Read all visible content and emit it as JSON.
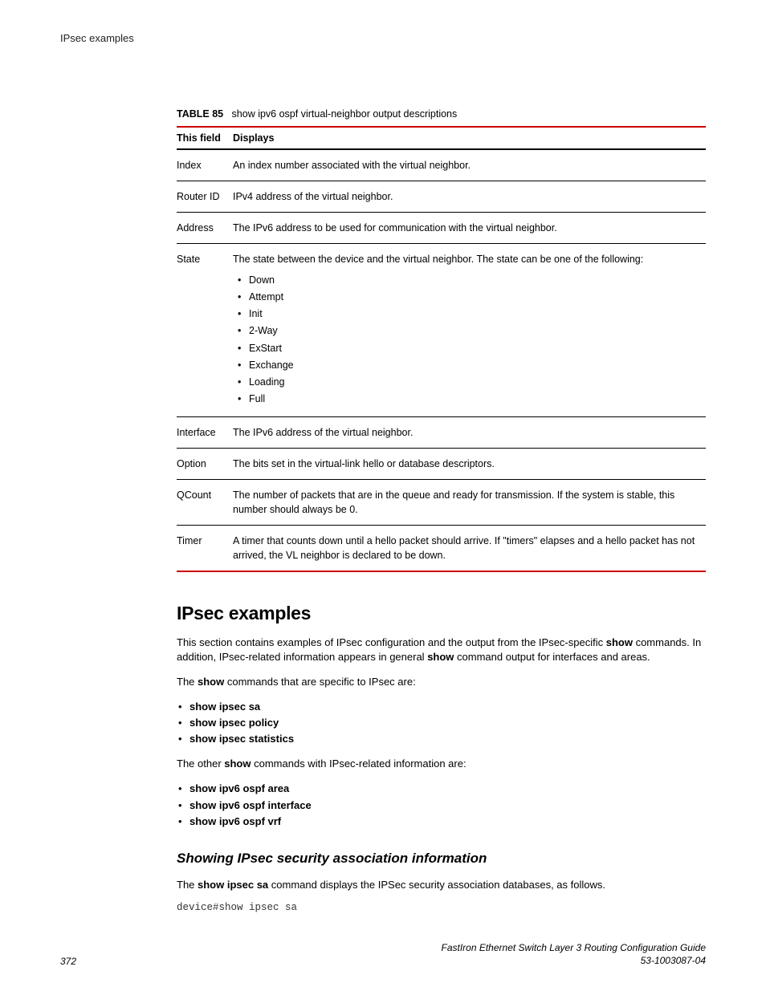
{
  "running_header": "IPsec examples",
  "table": {
    "caption_label": "TABLE 85",
    "caption_text": "show ipv6 ospf virtual-neighbor output descriptions",
    "header_field": "This field",
    "header_displays": "Displays",
    "rows": {
      "index": {
        "field": "Index",
        "desc": "An index number associated with the virtual neighbor."
      },
      "routerid": {
        "field": "Router ID",
        "desc": "IPv4 address of the virtual neighbor."
      },
      "address": {
        "field": "Address",
        "desc": "The IPv6 address to be used for communication with the virtual neighbor."
      },
      "state": {
        "field": "State",
        "intro": "The state between the device and the virtual neighbor. The state can be one of the following:",
        "items": {
          "0": "Down",
          "1": "Attempt",
          "2": "Init",
          "3": "2-Way",
          "4": "ExStart",
          "5": "Exchange",
          "6": "Loading",
          "7": "Full"
        }
      },
      "interface": {
        "field": "Interface",
        "desc": "The IPv6 address of the virtual neighbor."
      },
      "option": {
        "field": "Option",
        "desc": "The bits set in the virtual-link hello or database descriptors."
      },
      "qcount": {
        "field": "QCount",
        "desc": "The number of packets that are in the queue and ready for transmission. If the system is stable, this number should always be 0."
      },
      "timer": {
        "field": "Timer",
        "desc": "A timer that counts down until a hello packet should arrive. If \"timers\" elapses and a hello packet has not arrived, the VL neighbor is declared to be down."
      }
    }
  },
  "section": {
    "heading": "IPsec examples",
    "para1_a": "This section contains examples of IPsec configuration and the output from the IPsec-specific ",
    "para1_b_bold": "show",
    "para1_c": " commands. In addition, IPsec-related information appears in general ",
    "para1_d_bold": "show",
    "para1_e": " command output for interfaces and areas.",
    "para2_a": "The ",
    "para2_b_bold": "show",
    "para2_c": " commands that are specific to IPsec are:",
    "ipsec_cmds": {
      "0": "show ipsec sa",
      "1": "show ipsec policy",
      "2": "show ipsec statistics"
    },
    "para3_a": "The other ",
    "para3_b_bold": "show",
    "para3_c": " commands with IPsec-related information are:",
    "other_cmds": {
      "0": "show ipv6 ospf area",
      "1": "show ipv6 ospf interface",
      "2": "show ipv6 ospf vrf"
    },
    "subheading": "Showing IPsec security association information",
    "para4_a": "The ",
    "para4_b_bold": "show ipsec sa",
    "para4_c": " command displays the IPSec security association databases, as follows.",
    "code": "device#show ipsec sa"
  },
  "footer": {
    "page_no": "372",
    "guide": "FastIron Ethernet Switch Layer 3 Routing Configuration Guide",
    "docid": "53-1003087-04"
  }
}
